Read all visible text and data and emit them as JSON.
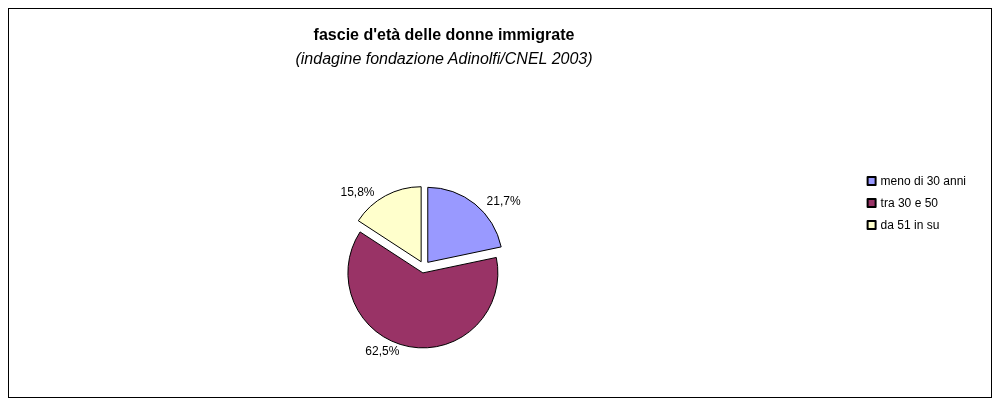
{
  "chart_data": {
    "type": "pie",
    "title": "fascie d'età delle donne immigrate",
    "subtitle": "(indagine fondazione Adinolfi/CNEL 2003)",
    "categories": [
      "meno di 30 anni",
      "tra 30 e 50",
      "da 51 in su"
    ],
    "values": [
      21.7,
      62.5,
      15.8
    ],
    "colors": [
      "#9999ff",
      "#993366",
      "#ffffcc"
    ],
    "value_labels": [
      "21,7%",
      "62,5%",
      "15,8%"
    ],
    "legend": "right"
  }
}
